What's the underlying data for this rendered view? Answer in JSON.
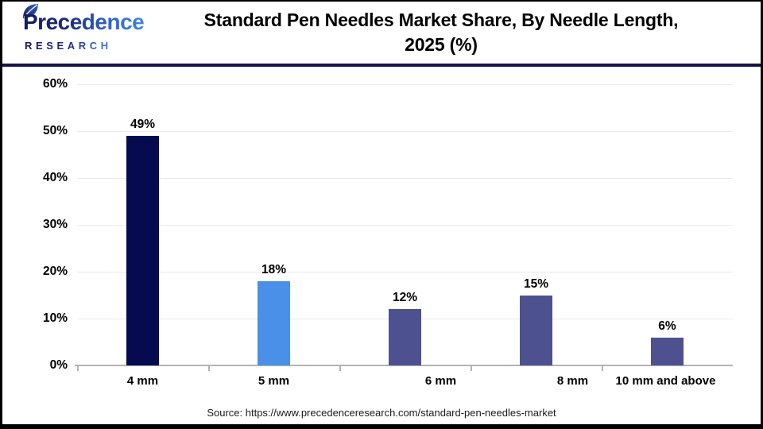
{
  "header": {
    "logo": {
      "line1": "Precedence",
      "line2": "RESEARCH"
    },
    "title_line1": "Standard Pen Needles Market Share, By Needle Length,",
    "title_line2": "2025 (%)"
  },
  "chart_data": {
    "type": "bar",
    "title": "Standard Pen Needles Market Share, By Needle Length, 2025 (%)",
    "categories": [
      "4 mm",
      "5 mm",
      "6 mm",
      "8 mm",
      "10 mm and above"
    ],
    "values": [
      49,
      18,
      12,
      15,
      6
    ],
    "value_labels": [
      "49%",
      "18%",
      "12%",
      "15%",
      "6%"
    ],
    "bar_colors": [
      "#050b4e",
      "#4a90e8",
      "#4d5190",
      "#4d5190",
      "#4d5190"
    ],
    "y_tick_labels": [
      "0%",
      "10%",
      "20%",
      "30%",
      "40%",
      "50%",
      "60%"
    ],
    "ylim": [
      0,
      60
    ],
    "y_tick_step": 10,
    "xlabel": "",
    "ylabel": "",
    "grid": true,
    "legend": false
  },
  "footer": {
    "source": "Source: https://www.precedenceresearch.com/standard-pen-needles-market"
  },
  "colors": {
    "divider": "#14144d",
    "grid": "#eaeaea",
    "axis": "#b3b3b6",
    "logo_dark": "#131a60",
    "logo_blue": "#3e86e8"
  }
}
